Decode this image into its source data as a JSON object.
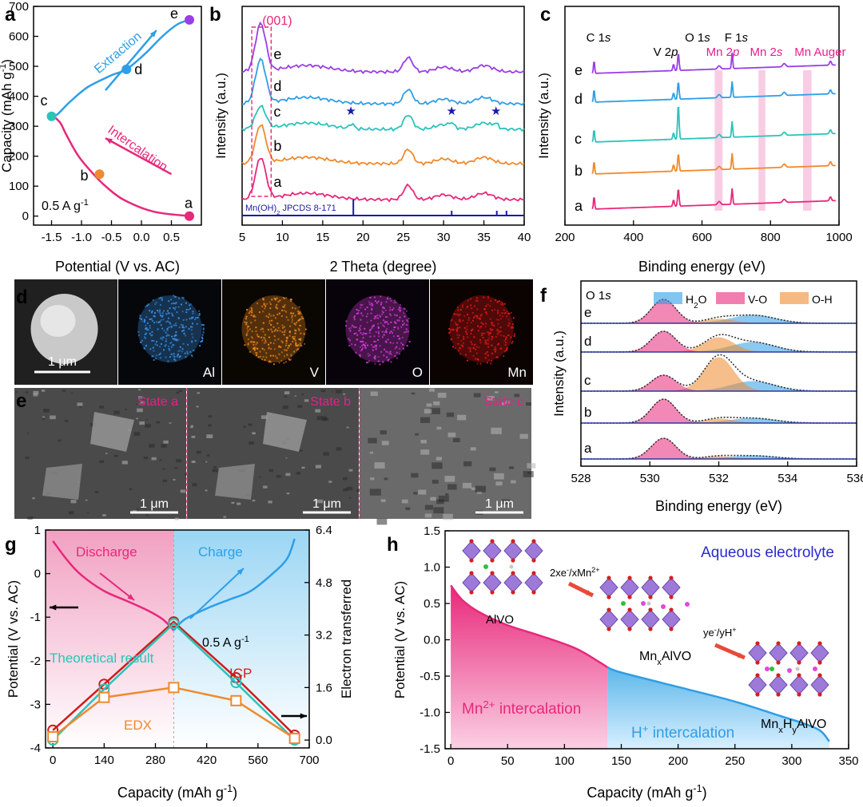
{
  "colors": {
    "pink": "#e8287a",
    "orange": "#ef8a2e",
    "teal": "#2cc3b9",
    "blue": "#2f9ee6",
    "purple": "#9a3ee6",
    "navy": "#1a1aa8",
    "red": "#d11b1b",
    "mnpink": "#e91e8c"
  },
  "panel_letters": [
    "a",
    "b",
    "c",
    "d",
    "e",
    "f",
    "g",
    "h"
  ],
  "chart_data": [
    {
      "id": "a",
      "type": "line",
      "xlabel": "Potential (V vs. AC)",
      "ylabel": "Capacity (mAh g-1)",
      "xlim": [
        -1.8,
        1.0
      ],
      "ylim": [
        -30,
        700
      ],
      "xticks": [
        "-1.5",
        "-1.0",
        "-0.5",
        "0.0",
        "0.5"
      ],
      "yticks": [
        "0",
        "100",
        "200",
        "300",
        "400",
        "500",
        "600",
        "700"
      ],
      "series": [
        {
          "name": "",
          "x": [
            0.8,
            0.2,
            -0.3,
            -0.6,
            -0.8,
            -1.05,
            -1.25,
            -1.35,
            -1.45,
            -1.5
          ],
          "y": [
            0,
            15,
            55,
            100,
            140,
            200,
            270,
            310,
            330,
            333
          ]
        },
        {
          "name": "",
          "x": [
            -1.5,
            -1.4,
            -1.2,
            -0.9,
            -0.5,
            -0.25,
            0.05,
            0.35,
            0.6,
            0.8
          ],
          "y": [
            333,
            340,
            380,
            430,
            470,
            490,
            540,
            600,
            640,
            655
          ]
        }
      ],
      "points": [
        {
          "label": "a",
          "x": 0.8,
          "y": 0,
          "color": "#e8287a"
        },
        {
          "label": "b",
          "x": -0.7,
          "y": 140,
          "color": "#ef8a2e"
        },
        {
          "label": "c",
          "x": -1.5,
          "y": 333,
          "color": "#2cc3b9"
        },
        {
          "label": "d",
          "x": -0.25,
          "y": 490,
          "color": "#2f9ee6"
        },
        {
          "label": "e",
          "x": 0.8,
          "y": 655,
          "color": "#9a3ee6"
        }
      ],
      "annotations": [
        "Extraction",
        "Intercalation",
        "0.5 A g-1"
      ]
    },
    {
      "id": "b",
      "type": "line",
      "xlabel": "2 Theta (degree)",
      "ylabel": "Intensity (a.u.)",
      "xlim": [
        5,
        40
      ],
      "xticks": [
        "5",
        "10",
        "15",
        "20",
        "25",
        "30",
        "35",
        "40"
      ],
      "series_labels": [
        "a",
        "b",
        "c",
        "d",
        "e"
      ],
      "peaks_deg": [
        7.2,
        25.5,
        30,
        35
      ],
      "markers_deg": [
        18.5,
        31,
        36.5
      ],
      "reference": {
        "label": "Mn(OH)2 JPCDS 8-171",
        "lines_deg": [
          18.8,
          31.0,
          36.6,
          37.8
        ]
      },
      "highlight": "(001)"
    },
    {
      "id": "c",
      "type": "line",
      "xlabel": "Binding energy (eV)",
      "ylabel": "Intensity (a.u.)",
      "xlim": [
        200,
        1000
      ],
      "xticks": [
        "200",
        "400",
        "600",
        "800",
        "1000"
      ],
      "series_labels": [
        "a",
        "b",
        "c",
        "d",
        "e"
      ],
      "peak_labels": [
        "C 1s",
        "V 2p",
        "O 1s",
        "F 1s",
        "Mn 2p",
        "Mn 2s",
        "Mn Auger"
      ],
      "peaks_ev": [
        285,
        517,
        531,
        688
      ],
      "highlight_bands_ev": [
        [
          637,
          660
        ],
        [
          765,
          785
        ],
        [
          895,
          920
        ]
      ]
    },
    {
      "id": "f",
      "type": "area",
      "xlabel": "Binding energy (eV)",
      "ylabel": "Intensity (a.u.)",
      "xlim": [
        528,
        536
      ],
      "xticks": [
        "528",
        "530",
        "532",
        "534",
        "536"
      ],
      "title": "O 1s",
      "legend": [
        "H2O",
        "V-O",
        "O-H"
      ],
      "series_labels": [
        "a",
        "b",
        "c",
        "d",
        "e"
      ]
    },
    {
      "id": "g",
      "type": "line",
      "xlabel": "Capacity (mAh g-1)",
      "ylabel": "Potential (V vs. AC)",
      "y2label": "Electron transferred",
      "xlim": [
        -20,
        700
      ],
      "ylim": [
        -4,
        1
      ],
      "y2lim": [
        -0.24,
        6.4
      ],
      "xticks": [
        "0",
        "140",
        "280",
        "420",
        "560",
        "700"
      ],
      "yticks": [
        "-4",
        "-3",
        "-2",
        "-1",
        "0",
        "1"
      ],
      "y2ticks": [
        "0.0",
        "1.6",
        "3.2",
        "4.8",
        "6.4"
      ],
      "regions": [
        "Discharge",
        "Charge"
      ],
      "annotations": [
        "0.5 A g-1"
      ],
      "potential_series": [
        {
          "name": "Discharge",
          "x": [
            0,
            40,
            80,
            140,
            200,
            260,
            300,
            330
          ],
          "y": [
            0.75,
            0.3,
            -0.05,
            -0.4,
            -0.62,
            -0.85,
            -1.05,
            -1.3
          ]
        },
        {
          "name": "Charge",
          "x": [
            330,
            360,
            420,
            480,
            540,
            600,
            640,
            660
          ],
          "y": [
            -1.3,
            -1.05,
            -0.8,
            -0.6,
            -0.4,
            0.0,
            0.35,
            0.8
          ]
        }
      ],
      "series": [
        {
          "name": "ICP",
          "x": [
            0,
            140,
            330,
            500,
            660
          ],
          "y": [
            0.3,
            1.7,
            3.6,
            1.9,
            0.15
          ]
        },
        {
          "name": "Theoretical result",
          "x": [
            0,
            140,
            330,
            500,
            660
          ],
          "y": [
            0,
            1.55,
            3.55,
            1.75,
            0
          ]
        },
        {
          "name": "EDX",
          "x": [
            0,
            140,
            330,
            500,
            660
          ],
          "y": [
            0.1,
            1.3,
            1.6,
            1.2,
            0.05
          ]
        }
      ]
    },
    {
      "id": "h",
      "type": "area",
      "xlabel": "Capacity (mAh g-1)",
      "ylabel": "Potential (V vs. AC)",
      "xlim": [
        -5,
        350
      ],
      "ylim": [
        -1.5,
        1.5
      ],
      "xticks": [
        "0",
        "50",
        "100",
        "150",
        "200",
        "250",
        "300",
        "350"
      ],
      "yticks": [
        "-1.5",
        "-1.0",
        "-0.5",
        "0.0",
        "0.5",
        "1.0",
        "1.5"
      ],
      "series": [
        {
          "name": "",
          "x": [
            0,
            10,
            25,
            50,
            80,
            110,
            130,
            138,
            150,
            200,
            250,
            290,
            310,
            325,
            333
          ],
          "y": [
            0.75,
            0.55,
            0.38,
            0.2,
            0.05,
            -0.12,
            -0.3,
            -0.38,
            -0.45,
            -0.65,
            -0.85,
            -1.05,
            -1.15,
            -1.25,
            -1.4
          ]
        }
      ],
      "split_x": 138,
      "regions": [
        "Mn2+ intercalation",
        "H+ intercalation"
      ],
      "annotations": [
        "Aqueous electrolyte",
        "AlVO",
        "MnxAlVO",
        "MnxHyAlVO",
        "2xe-/xMn2+",
        "ye-/yH+"
      ]
    }
  ],
  "micro_d": {
    "labels": [
      "1 μm",
      "Al",
      "V",
      "O",
      "Mn"
    ],
    "colors": [
      "#d0d0d0",
      "#3a8fe0",
      "#f08a1e",
      "#d23ad8",
      "#e01818"
    ]
  },
  "micro_e": {
    "labels": [
      "State a",
      "State b",
      "State c"
    ],
    "scale": [
      "1 μm",
      "1 μm",
      "1 μm"
    ]
  }
}
